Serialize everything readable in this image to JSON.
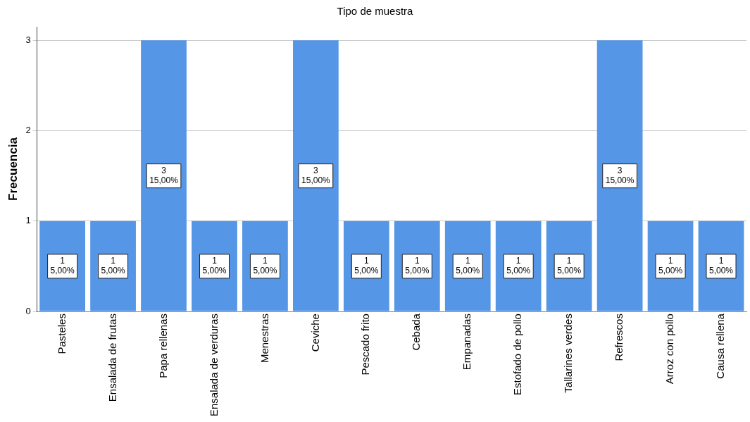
{
  "chart_data": {
    "type": "bar",
    "title": "Tipo de muestra",
    "ylabel": "Frecuencia",
    "categories": [
      "Pasteles",
      "Ensalada de frutas",
      "Papa rellenas",
      "Ensalada de verduras",
      "Menestras",
      "Ceviche",
      "Pescado frito",
      "Cebada",
      "Empanadas",
      "Estofado de pollo",
      "Tallarines verdes",
      "Refrescos",
      "Arroz con pollo",
      "Causa rellena"
    ],
    "values": [
      1,
      1,
      3,
      1,
      1,
      3,
      1,
      1,
      1,
      1,
      1,
      3,
      1,
      1
    ],
    "value_labels": [
      "1\n5,00%",
      "1\n5,00%",
      "3\n15,00%",
      "1\n5,00%",
      "1\n5,00%",
      "3\n15,00%",
      "1\n5,00%",
      "1\n5,00%",
      "1\n5,00%",
      "1\n5,00%",
      "1\n5,00%",
      "3\n15,00%",
      "1\n5,00%",
      "1\n5,00%"
    ],
    "color": "#5596e6",
    "ylim": [
      0,
      3.15
    ],
    "yticks": [
      0,
      1,
      2,
      3
    ],
    "grid": "y",
    "legend": false
  }
}
